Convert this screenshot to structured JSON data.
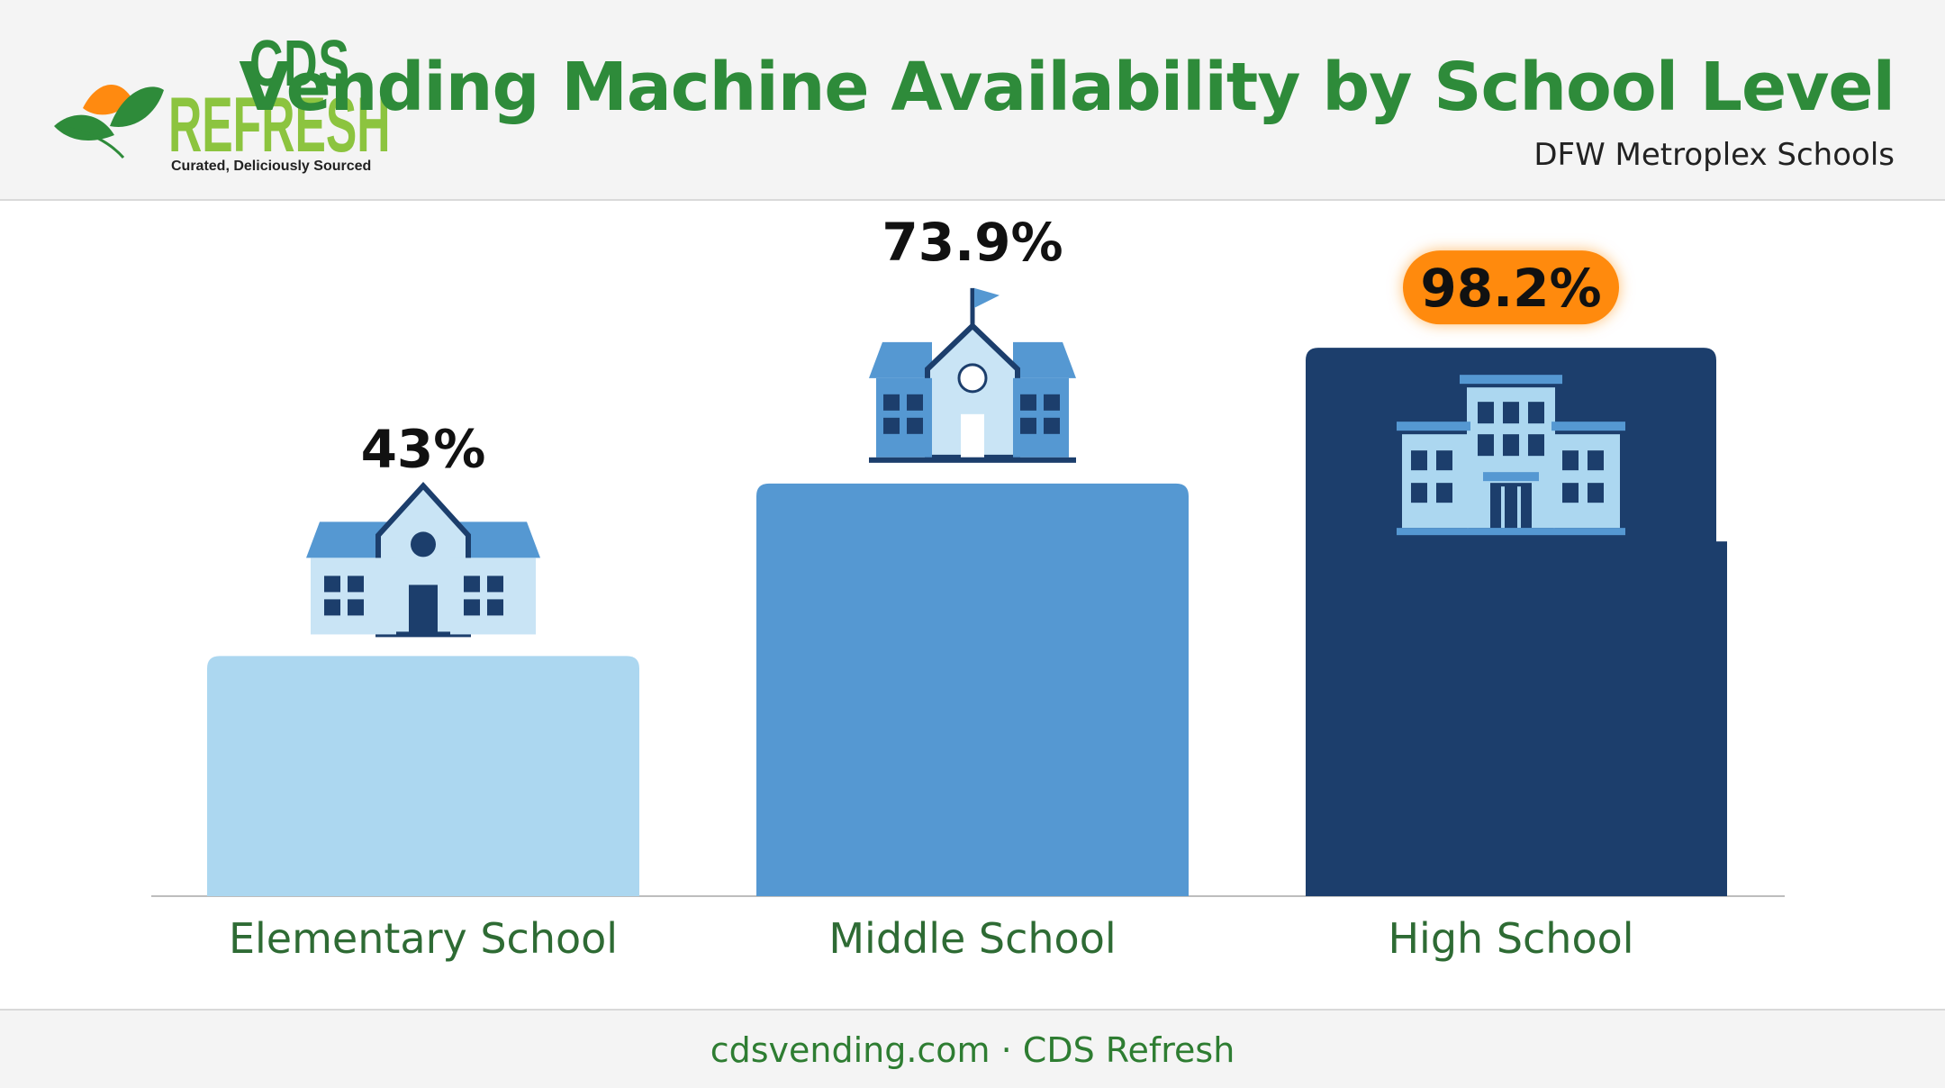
{
  "header": {
    "logo": {
      "top": "CDS",
      "main": "REFRESH",
      "tagline": "Curated, Deliciously Sourced"
    },
    "title": "Vending Machine Availability by School Level",
    "subtitle": "DFW Metroplex Schools"
  },
  "footer": {
    "text": "cdsvending.com · CDS Refresh"
  },
  "colors": {
    "brand_green": "#2e8b3a",
    "accent_lime": "#8cc43f",
    "elementary_bar": "#acd7f0",
    "middle_bar": "#5598d2",
    "high_bar": "#1c3e6c",
    "highlight_badge": "#ff8a10"
  },
  "chart_data": {
    "type": "bar",
    "title": "Vending Machine Availability by School Level",
    "subtitle": "DFW Metroplex Schools",
    "categories": [
      "Elementary School",
      "Middle School",
      "High School"
    ],
    "values": [
      43,
      73.9,
      98.2
    ],
    "value_labels": [
      "43%",
      "73.9%",
      "98.2%"
    ],
    "icons": [
      "school-house-icon",
      "middle-school-building-icon",
      "high-school-building-icon"
    ],
    "highlighted": "High School",
    "ylim": [
      0,
      100
    ],
    "grid": false,
    "legend": "none"
  }
}
